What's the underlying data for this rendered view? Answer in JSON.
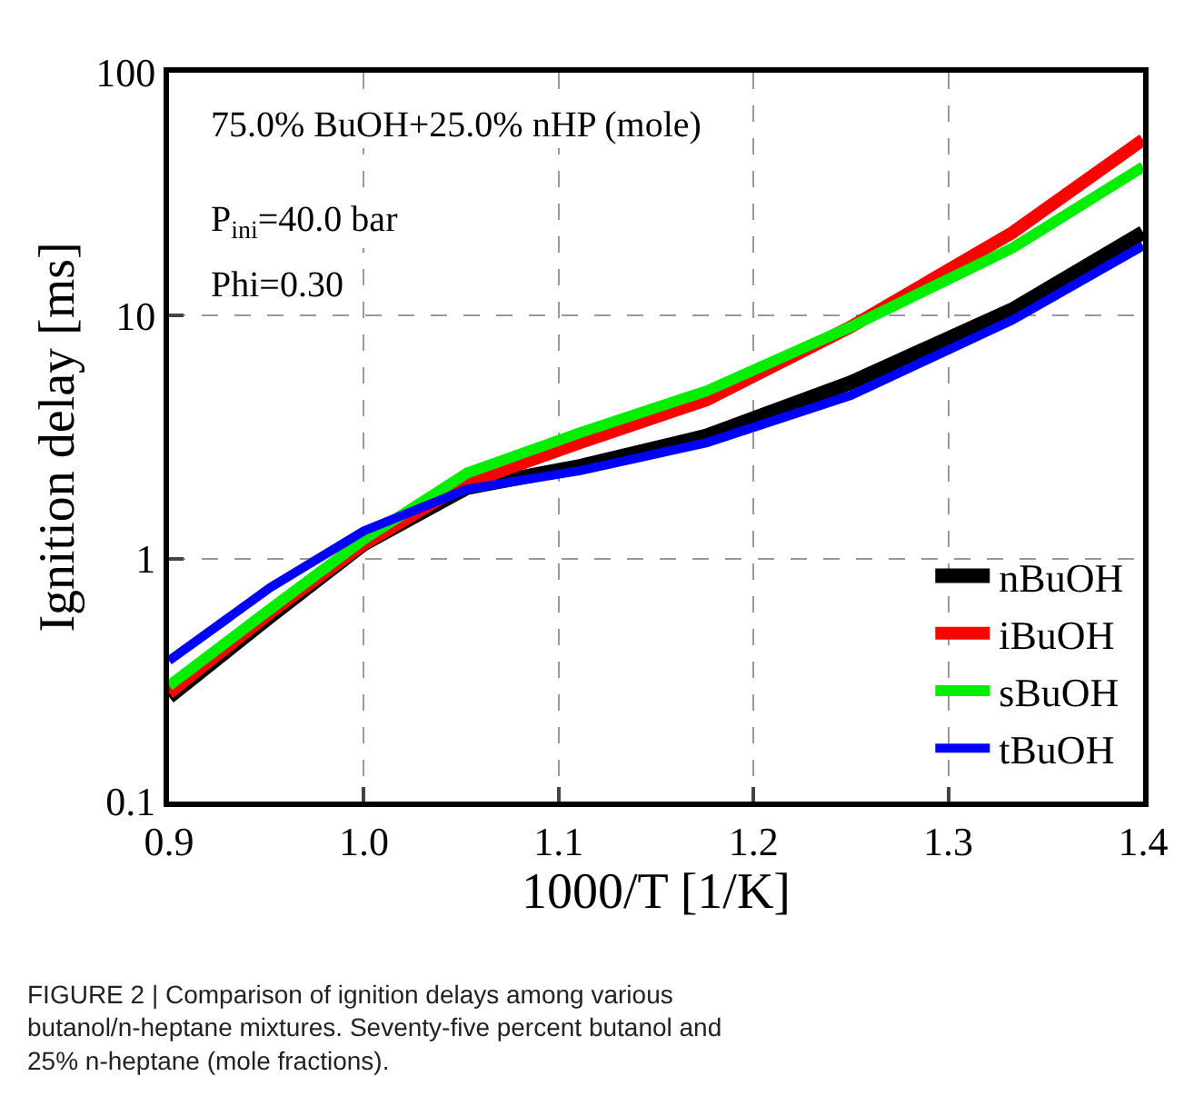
{
  "chart_data": {
    "type": "line",
    "xlabel": "1000/T [1/K]",
    "ylabel": "Ignition delay [ms]",
    "x": [
      0.9,
      0.952,
      1.0,
      1.053,
      1.111,
      1.176,
      1.25,
      1.333,
      1.4
    ],
    "series": [
      {
        "name": "nBuOH",
        "color": "#000000",
        "values": [
          0.27,
          0.58,
          1.15,
          1.96,
          2.4,
          3.2,
          5.3,
          10.6,
          22
        ]
      },
      {
        "name": "iBuOH",
        "color": "#ff0000",
        "values": [
          0.28,
          0.6,
          1.15,
          2.05,
          3.0,
          4.5,
          9.0,
          22,
          53
        ]
      },
      {
        "name": "sBuOH",
        "color": "#00ee00",
        "values": [
          0.3,
          0.62,
          1.2,
          2.25,
          3.3,
          4.9,
          9.0,
          19,
          41
        ]
      },
      {
        "name": "tBuOH",
        "color": "#0000ff",
        "values": [
          0.38,
          0.76,
          1.3,
          1.93,
          2.3,
          3.0,
          4.7,
          9.6,
          19.4
        ]
      }
    ],
    "xlim": [
      0.9,
      1.4
    ],
    "xticks": [
      {
        "value": 0.9,
        "label": "0.9"
      },
      {
        "value": 1.0,
        "label": "1.0"
      },
      {
        "value": 1.1,
        "label": "1.1"
      },
      {
        "value": 1.2,
        "label": "1.2"
      },
      {
        "value": 1.3,
        "label": "1.3"
      },
      {
        "value": 1.4,
        "label": "1.4"
      }
    ],
    "ylim": [
      0.1,
      100
    ],
    "yticks": [
      0.1,
      1,
      10,
      100
    ],
    "log": "y",
    "grid": true,
    "legend": "bottom right",
    "line_style": "solid",
    "marker": "none",
    "annotations": [
      "75.0% BuOH+25.0% nHP (mole)",
      "P$_{ini}$=40.0 bar",
      "Phi=0.30",
      "FIGURE 2 | Comparison of ignition delays among various butanol/n-heptane mixtures. Seventy-five percent butanol and 25% n-heptane (mole fractions)."
    ]
  }
}
